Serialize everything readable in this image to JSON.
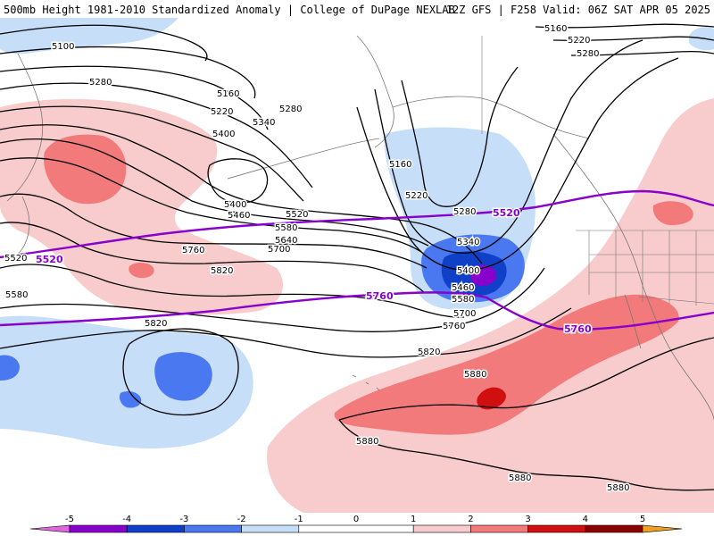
{
  "header": {
    "left": "500mb Height 1981-2010 Standardized Anomaly | College of DuPage NEXLAB",
    "right": "12Z GFS | F258 Valid: 06Z SAT APR 05 2025"
  },
  "colors": {
    "neg5": "#e066e0",
    "neg4": "#8800cc",
    "neg3": "#1040c8",
    "neg2": "#4a78f0",
    "neg1": "#c6def8",
    "pos1": "#f8cccc",
    "pos2": "#f27a7a",
    "pos3": "#d01010",
    "pos4": "#8c0000",
    "pos5": "#f0a020",
    "contour": "#000000",
    "highlight_contour": "#8800cc",
    "coast": "#777777"
  },
  "contour_labels": {
    "l5100": "5100",
    "l5280a": "5280",
    "l5160a": "5160",
    "l5220a": "5220",
    "l5280b": "5280",
    "l5340a": "5340",
    "l5400a": "5400",
    "l5400b": "5400",
    "l5460a": "5460",
    "l5520a": "5520",
    "l5580a": "5580",
    "l5640": "5640",
    "l5700a": "5700",
    "l5760a": "5760",
    "l5820a": "5820",
    "l5820b": "5820",
    "l5520w": "5520",
    "l5580w": "5580",
    "l5160b": "5160",
    "l5220b": "5220",
    "l5280c": "5280",
    "l5340b": "5340",
    "l5400c": "5400",
    "l5460b": "5460",
    "l5580b": "5580",
    "l5700b": "5700",
    "l5760b": "5760",
    "l5820c": "5820",
    "l5880a": "5880",
    "l5880b": "5880",
    "l5880c": "5880",
    "l5880d": "5880",
    "l5160c": "5160",
    "l5220c": "5220",
    "l5280d": "5280",
    "p5520a": "5520",
    "p5520b": "5520",
    "p5760a": "5760",
    "p5760b": "5760"
  },
  "colorbar": {
    "ticks": [
      "-5",
      "-4",
      "-3",
      "-2",
      "-1",
      "0",
      "1",
      "2",
      "3",
      "4",
      "5"
    ]
  }
}
